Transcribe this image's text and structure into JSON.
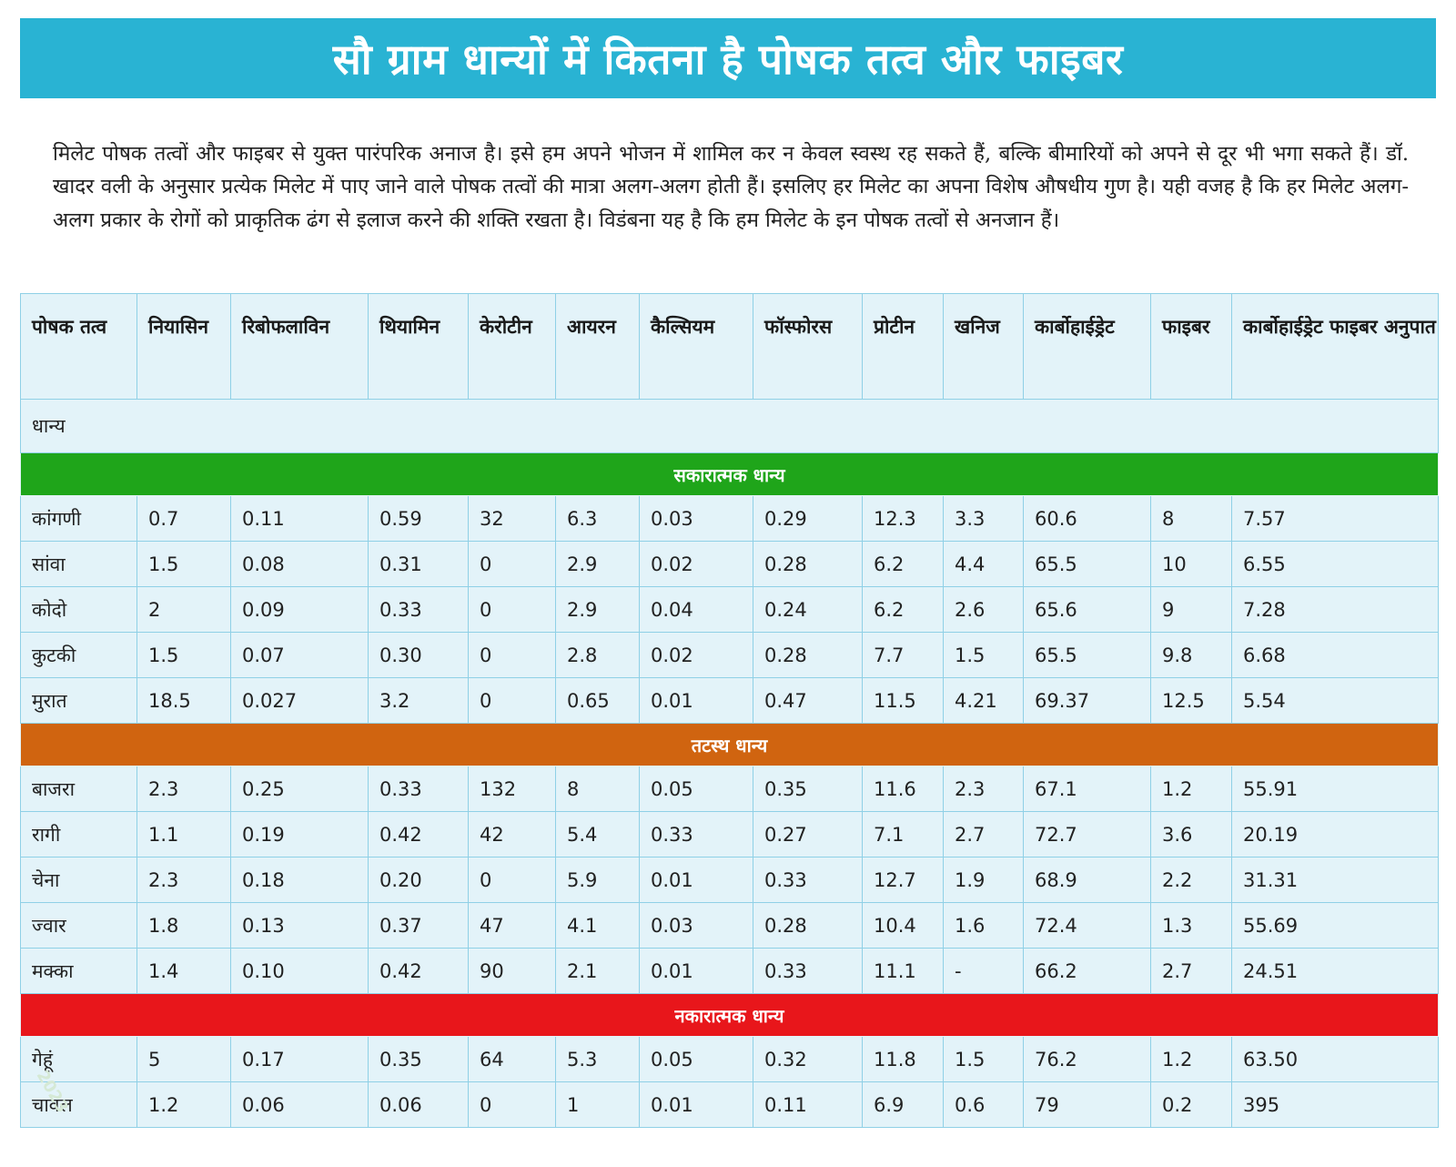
{
  "title": "सौ ग्राम धान्यों में कितना है पोषक तत्व और फाइबर",
  "intro": "मिलेट पोषक तत्वों और फाइबर से युक्त पारंपरिक अनाज है। इसे हम अपने भोजन में शामिल कर न केवल स्वस्थ रह सकते हैं, बल्कि बीमारियों को अपने से दूर भी भगा सकते हैं। डॉ. खादर वली के अनुसार प्रत्येक मिलेट में पाए जाने वाले पोषक तत्वों की मात्रा अलग-अलग होती हैं। इसलिए हर मिलेट का अपना विशेष औषधीय गुण है। यही वजह है कि हर मिलेट अलग-अलग प्रकार के रोगों को प्राकृतिक ढंग से इलाज करने की शक्ति रखता है। विडंबना यह है कि हम मिलेट के इन पोषक तत्वों से अनजान हैं।",
  "table": {
    "headers": [
      "पोषक तत्व",
      "नियासिन",
      "रिबोफलाविन",
      "थियामिन",
      "केरोटीन",
      "आयरन",
      "कैल्सियम",
      "फॉस्फोरस",
      "प्रोटीन",
      "खनिज",
      "कार्बोहाईड्रेट",
      "फाइबर",
      "कार्बोहाईड्रेट फाइबर अनुपात"
    ],
    "row_label": "धान्य",
    "groups": [
      {
        "name": "सकारात्मक धान्य",
        "color": "#1fa51a",
        "rows": [
          [
            "कांगणी",
            "0.7",
            "0.11",
            "0.59",
            "32",
            "6.3",
            "0.03",
            "0.29",
            "12.3",
            "3.3",
            "60.6",
            "8",
            "7.57"
          ],
          [
            "सांवा",
            "1.5",
            "0.08",
            "0.31",
            "0",
            "2.9",
            "0.02",
            "0.28",
            "6.2",
            "4.4",
            "65.5",
            "10",
            "6.55"
          ],
          [
            "कोदो",
            "2",
            "0.09",
            "0.33",
            "0",
            "2.9",
            "0.04",
            "0.24",
            "6.2",
            "2.6",
            "65.6",
            "9",
            "7.28"
          ],
          [
            "कुटकी",
            "1.5",
            "0.07",
            "0.30",
            "0",
            "2.8",
            "0.02",
            "0.28",
            "7.7",
            "1.5",
            "65.5",
            "9.8",
            "6.68"
          ],
          [
            "मुरात",
            "18.5",
            "0.027",
            "3.2",
            "0",
            "0.65",
            "0.01",
            "0.47",
            "11.5",
            "4.21",
            "69.37",
            "12.5",
            "5.54"
          ]
        ]
      },
      {
        "name": "तटस्थ धान्य",
        "color": "#d06410",
        "rows": [
          [
            "बाजरा",
            "2.3",
            "0.25",
            "0.33",
            "132",
            "8",
            "0.05",
            "0.35",
            "11.6",
            "2.3",
            "67.1",
            "1.2",
            "55.91"
          ],
          [
            "रागी",
            "1.1",
            "0.19",
            "0.42",
            "42",
            "5.4",
            "0.33",
            "0.27",
            "7.1",
            "2.7",
            "72.7",
            "3.6",
            "20.19"
          ],
          [
            "चेना",
            "2.3",
            "0.18",
            "0.20",
            "0",
            "5.9",
            "0.01",
            "0.33",
            "12.7",
            "1.9",
            "68.9",
            "2.2",
            "31.31"
          ],
          [
            "ज्वार",
            "1.8",
            "0.13",
            "0.37",
            "47",
            "4.1",
            "0.03",
            "0.28",
            "10.4",
            "1.6",
            "72.4",
            "1.3",
            "55.69"
          ],
          [
            "मक्का",
            "1.4",
            "0.10",
            "0.42",
            "90",
            "2.1",
            "0.01",
            "0.33",
            "11.1",
            "-",
            "66.2",
            "2.7",
            "24.51"
          ]
        ]
      },
      {
        "name": "नकारात्मक धान्य",
        "color": "#e8161b",
        "rows": [
          [
            "गेहूं",
            "5",
            "0.17",
            "0.35",
            "64",
            "5.3",
            "0.05",
            "0.32",
            "11.8",
            "1.5",
            "76.2",
            "1.2",
            "63.50"
          ],
          [
            "चावल",
            "1.2",
            "0.06",
            "0.06",
            "0",
            "1",
            "0.01",
            "0.11",
            "6.9",
            "0.6",
            "79",
            "0.2",
            "395"
          ]
        ]
      }
    ]
  },
  "watermark": "2023"
}
